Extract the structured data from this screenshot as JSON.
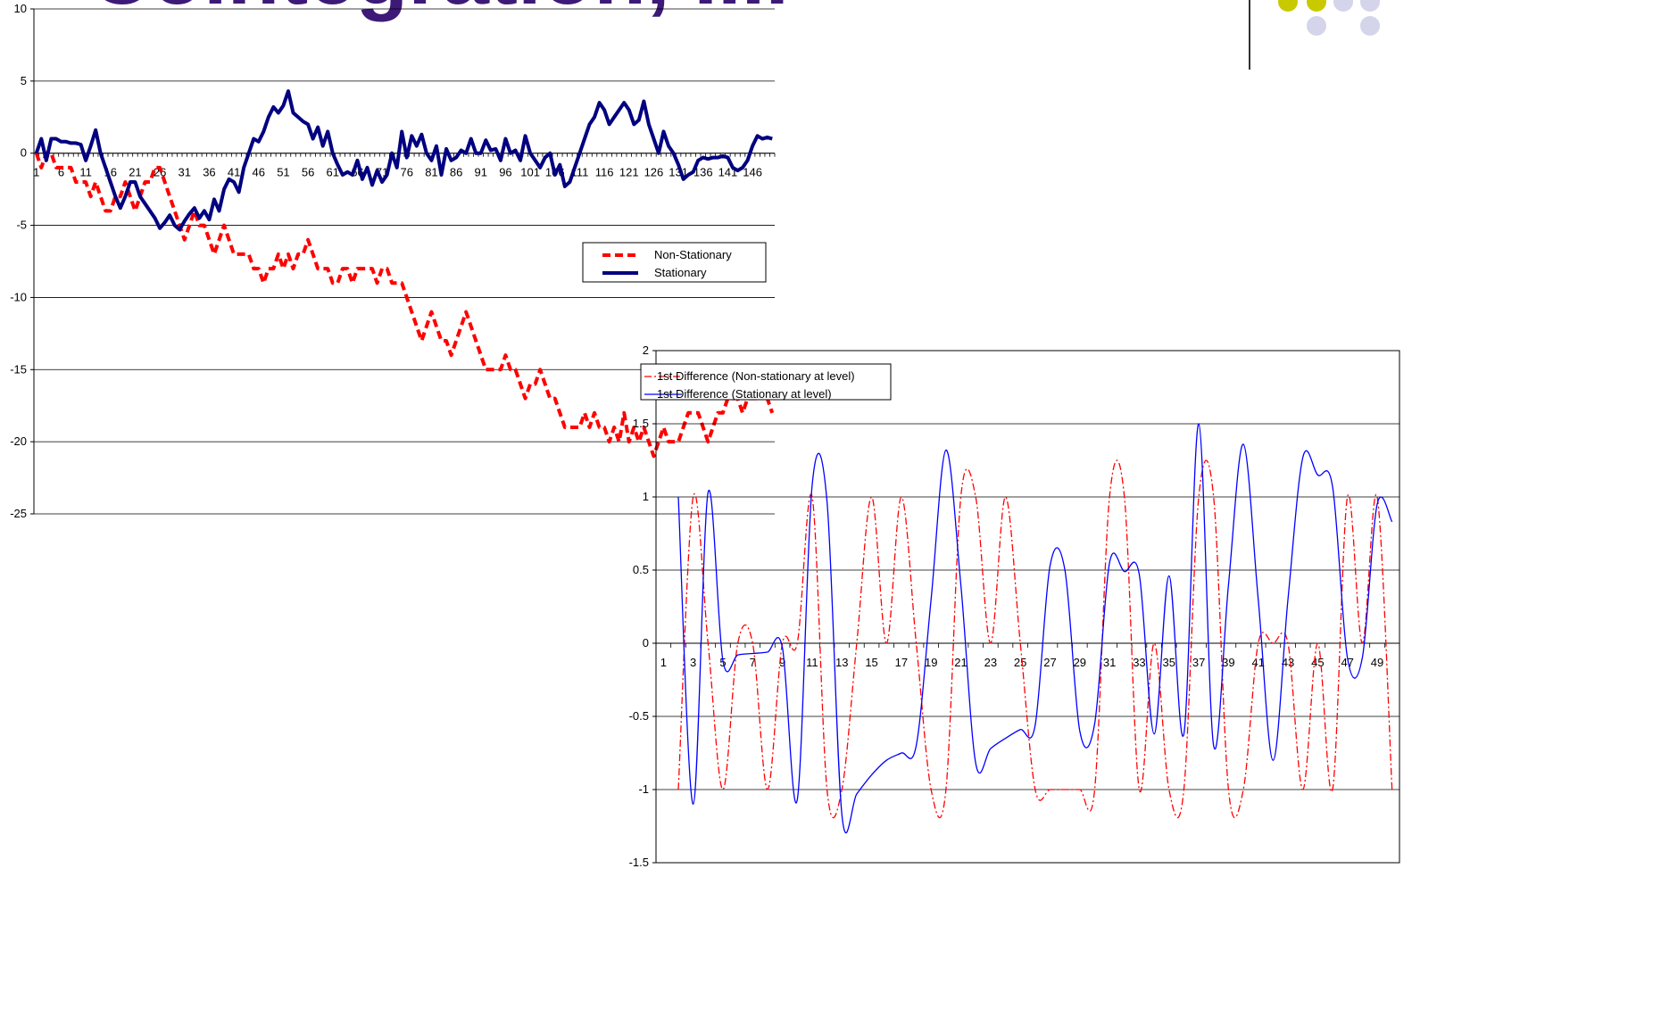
{
  "header": {
    "title": "Cointegration, I.I."
  },
  "chart_data": [
    {
      "type": "line",
      "legend": true,
      "grid": true,
      "categories": [
        1,
        null,
        null,
        null,
        null,
        6,
        null,
        null,
        null,
        null,
        11,
        null,
        null,
        null,
        null,
        16,
        null,
        null,
        null,
        null,
        21,
        null,
        null,
        null,
        null,
        26,
        null,
        null,
        null,
        null,
        31,
        null,
        null,
        null,
        null,
        36,
        null,
        null,
        null,
        null,
        41,
        null,
        null,
        null,
        null,
        46,
        null,
        null,
        null,
        null,
        51,
        null,
        null,
        null,
        null,
        56,
        null,
        null,
        null,
        null,
        61,
        null,
        null,
        null,
        null,
        66,
        null,
        null,
        null,
        null,
        71,
        null,
        null,
        null,
        null,
        76,
        null,
        null,
        null,
        null,
        81,
        null,
        null,
        null,
        null,
        86,
        null,
        null,
        null,
        null,
        91,
        null,
        null,
        null,
        null,
        96,
        null,
        null,
        null,
        null,
        101,
        null,
        null,
        null,
        null,
        106,
        null,
        null,
        null,
        null,
        111,
        null,
        null,
        null,
        null,
        116,
        null,
        null,
        null,
        null,
        121,
        null,
        null,
        null,
        null,
        126,
        null,
        null,
        null,
        null,
        131,
        null,
        null,
        null,
        null,
        136,
        null,
        null,
        null,
        null,
        141,
        null,
        null,
        null,
        null,
        146,
        null,
        null,
        null,
        null
      ],
      "ylim": [
        -25,
        10
      ],
      "yticks": [
        -25,
        -20,
        -15,
        -10,
        -5,
        0,
        5,
        10
      ],
      "series": [
        {
          "name": "Non-Stationary",
          "color": "#ff0000",
          "style": "dashed",
          "values": [
            0,
            -1,
            0,
            0,
            -1,
            -1,
            -1,
            -1,
            -2,
            -2,
            -2,
            -3,
            -2,
            -3,
            -4,
            -4,
            -3,
            -3,
            -2,
            -3,
            -4,
            -3,
            -2,
            -2,
            -1,
            -1,
            -2,
            -3,
            -4,
            -5,
            -6,
            -5,
            -4,
            -5,
            -5,
            -6,
            -7,
            -6,
            -5,
            -6,
            -7,
            -7,
            -7,
            -7,
            -8,
            -8,
            -9,
            -8,
            -8,
            -7,
            -8,
            -7,
            -8,
            -7,
            -7,
            -6,
            -7,
            -8,
            -8,
            -8,
            -9,
            -9,
            -8,
            -8,
            -9,
            -8,
            -8,
            -8,
            -8,
            -9,
            -8,
            -8,
            -9,
            -9,
            -9,
            -10,
            -11,
            -12,
            -13,
            -12,
            -11,
            -12,
            -13,
            -13,
            -14,
            -13,
            -12,
            -11,
            -12,
            -13,
            -14,
            -15,
            -15,
            -15,
            -15,
            -14,
            -15,
            -15,
            -16,
            -17,
            -16,
            -16,
            -15,
            -16,
            -17,
            -17,
            -18,
            -19,
            -19,
            -19,
            -19,
            -18,
            -19,
            -18,
            -19,
            -19,
            -20,
            -19,
            -20,
            -18,
            -20,
            -19,
            -20,
            -19,
            -20,
            -21,
            -20,
            -19,
            -20,
            -20,
            -20,
            -19,
            -18,
            -18,
            -18,
            -19,
            -20,
            -19,
            -18,
            -18,
            -17,
            -17,
            -17,
            -18,
            -17,
            -17,
            -17,
            -16,
            -17,
            -18
          ]
        },
        {
          "name": "Stationary",
          "color": "#000080",
          "style": "solid",
          "values": [
            0,
            1,
            -0.5,
            1,
            1,
            0.8,
            0.8,
            0.7,
            0.7,
            0.6,
            -0.5,
            0.5,
            1.6,
            0,
            -1,
            -2,
            -3,
            -3.8,
            -3,
            -2,
            -2,
            -3,
            -3.5,
            -4,
            -4.5,
            -5.2,
            -4.8,
            -4.3,
            -5,
            -5.3,
            -4.7,
            -4.2,
            -3.8,
            -4.5,
            -4,
            -4.6,
            -3.2,
            -4,
            -2.5,
            -1.8,
            -2,
            -2.7,
            -1,
            0,
            1,
            0.8,
            1.5,
            2.5,
            3.2,
            2.8,
            3.3,
            4.3,
            2.8,
            2.5,
            2.2,
            2,
            1,
            1.8,
            0.5,
            1.5,
            0,
            -0.8,
            -1.5,
            -1.3,
            -1.5,
            -0.5,
            -1.8,
            -1,
            -2.2,
            -1.2,
            -2,
            -1.5,
            0,
            -1,
            1.5,
            -0.3,
            1.2,
            0.5,
            1.3,
            0,
            -0.5,
            0.5,
            -1.5,
            0.3,
            -0.5,
            -0.3,
            0.2,
            0,
            1,
            0,
            0,
            0.9,
            0.2,
            0.3,
            -0.5,
            1,
            0,
            0.2,
            -0.5,
            1.2,
            0,
            -0.5,
            -1,
            -0.3,
            0,
            -1.5,
            -0.8,
            -2.3,
            -2,
            -1,
            0,
            1,
            2,
            2.5,
            3.5,
            3,
            2,
            2.5,
            3,
            3.5,
            3,
            2,
            2.3,
            3.6,
            2,
            1,
            0,
            1.5,
            0.5,
            0,
            -0.8,
            -1.8,
            -1.5,
            -1.3,
            -0.5,
            -0.3,
            -0.4,
            -0.3,
            -0.3,
            -0.2,
            -0.3,
            -1,
            -1.2,
            -1,
            -0.5,
            0.5,
            1.2,
            1,
            1.1,
            1
          ]
        }
      ]
    },
    {
      "type": "line",
      "legend": true,
      "grid": true,
      "smooth": true,
      "categories": [
        1,
        null,
        3,
        null,
        5,
        null,
        7,
        null,
        9,
        null,
        11,
        null,
        13,
        null,
        15,
        null,
        17,
        null,
        19,
        null,
        21,
        null,
        23,
        null,
        25,
        null,
        27,
        null,
        29,
        null,
        31,
        null,
        33,
        null,
        35,
        null,
        37,
        null,
        39,
        null,
        41,
        null,
        43,
        null,
        45,
        null,
        47,
        null,
        49,
        null
      ],
      "ylim": [
        -1.5,
        2
      ],
      "yticks": [
        -1.5,
        -1,
        -0.5,
        0,
        0.5,
        1,
        1.5,
        2
      ],
      "series": [
        {
          "name": "1st Difference (Non-stationary at level)",
          "color": "#ff0000",
          "style": "dashdot",
          "values": [
            null,
            -1,
            1,
            0,
            -1,
            0,
            0,
            -1,
            0,
            0,
            1,
            -1,
            -1,
            0,
            1,
            0,
            1,
            0,
            -1,
            -1,
            1,
            1,
            0,
            1,
            0,
            -1,
            -1,
            -1,
            -1,
            -1,
            1,
            1,
            -1,
            0,
            -1,
            -1,
            1,
            1,
            -1,
            -1,
            0,
            0,
            0,
            -1,
            0,
            -1,
            1,
            0,
            1,
            -1
          ]
        },
        {
          "name": "1st Difference (Stationary at level)",
          "color": "#0000ff",
          "style": "solid",
          "values": [
            null,
            1,
            -1.1,
            1.03,
            -0.12,
            -0.08,
            -0.07,
            -0.06,
            -0.03,
            -1.07,
            1.08,
            0.97,
            -1.17,
            -1.03,
            -0.9,
            -0.8,
            -0.75,
            -0.7,
            0.3,
            1.32,
            0.4,
            -0.82,
            -0.72,
            -0.65,
            -0.59,
            -0.56,
            0.53,
            0.5,
            -0.6,
            -0.55,
            0.55,
            0.49,
            0.47,
            -0.62,
            0.46,
            -0.62,
            1.5,
            -0.7,
            0.4,
            1.36,
            0.3,
            -0.8,
            0.3,
            1.27,
            1.15,
            1.07,
            -0.1,
            -0.1,
            0.95,
            0.83
          ]
        }
      ]
    }
  ]
}
